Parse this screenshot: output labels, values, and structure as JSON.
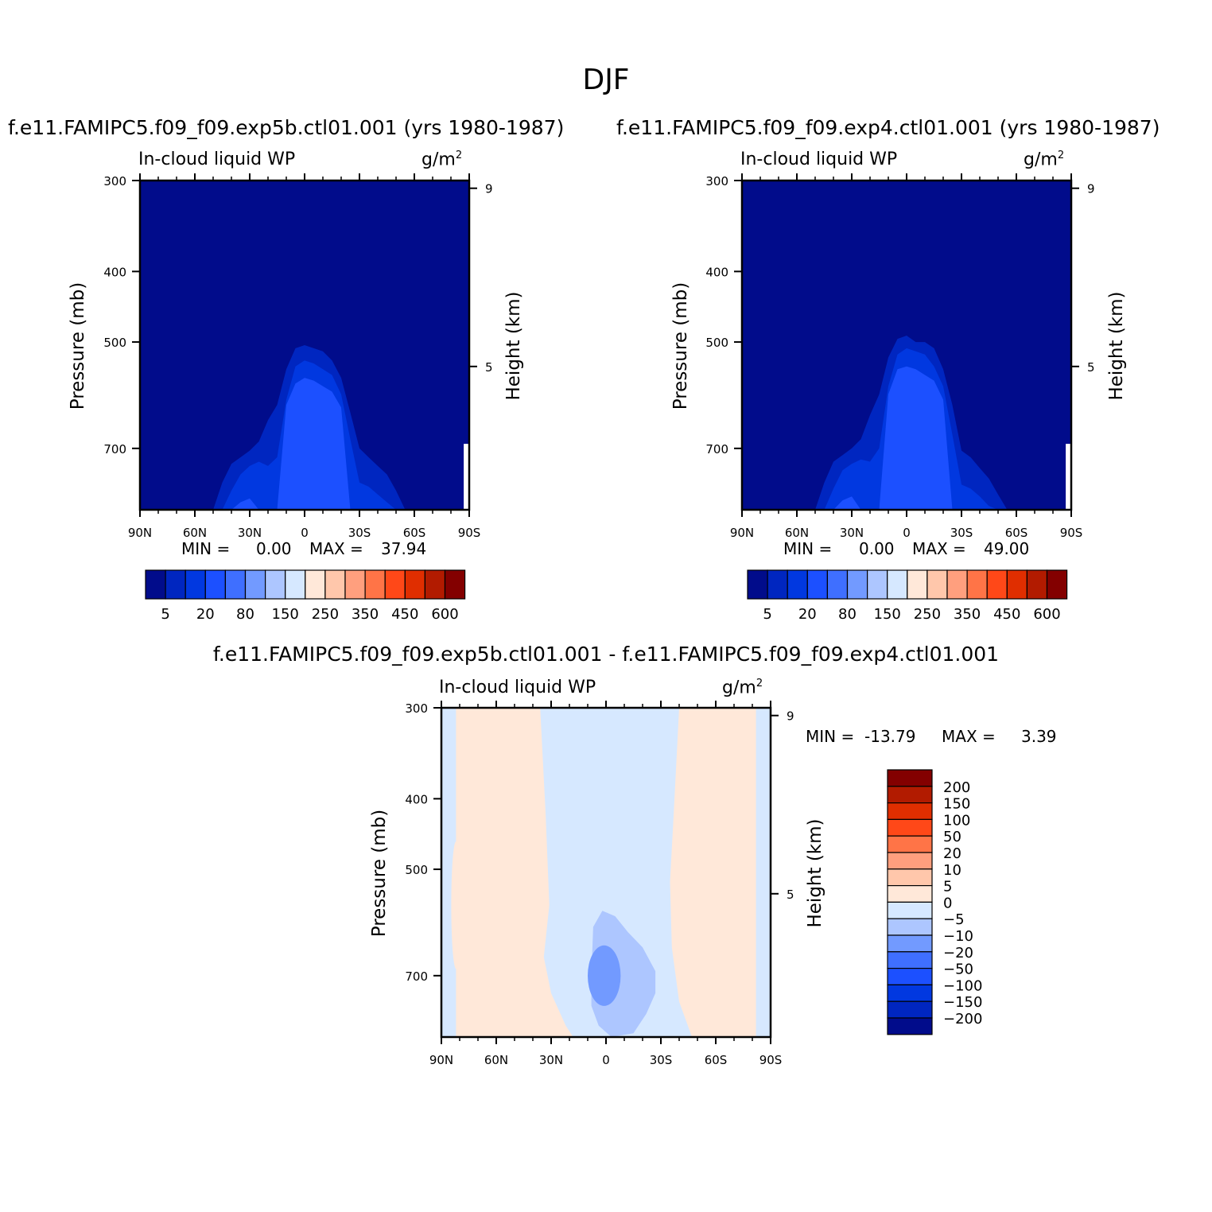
{
  "page_title": "DJF",
  "panels": [
    {
      "run_title": "f.e11.FAMIPC5.f09_f09.exp5b.ctl01.001 (yrs 1980-1987)",
      "variable": "In-cloud liquid WP",
      "units": "g/m",
      "units_exp": "2",
      "y_label": "Pressure (mb)",
      "y2_label": "Height (km)",
      "min_label": "MIN =",
      "min_value": "0.00",
      "max_label": "MAX =",
      "max_value": "37.94"
    },
    {
      "run_title": "f.e11.FAMIPC5.f09_f09.exp4.ctl01.001 (yrs 1980-1987)",
      "variable": "In-cloud liquid WP",
      "units": "g/m",
      "units_exp": "2",
      "y_label": "Pressure (mb)",
      "y2_label": "Height (km)",
      "min_label": "MIN =",
      "min_value": "0.00",
      "max_label": "MAX =",
      "max_value": "49.00"
    },
    {
      "run_title": "f.e11.FAMIPC5.f09_f09.exp5b.ctl01.001 - f.e11.FAMIPC5.f09_f09.exp4.ctl01.001",
      "variable": "In-cloud liquid WP",
      "units": "g/m",
      "units_exp": "2",
      "y_label": "Pressure (mb)",
      "y2_label": "Height (km)",
      "min_label": "MIN =",
      "min_value": "-13.79",
      "max_label": "MAX =",
      "max_value": "3.39"
    }
  ],
  "chart_data": [
    {
      "type": "heatmap",
      "title": "f.e11.FAMIPC5.f09_f09.exp5b.ctl01.001 (yrs 1980-1987)",
      "subtitle": "In-cloud liquid WP",
      "units": "g/m2",
      "x_ticks": [
        90,
        60,
        30,
        0,
        -30,
        -60,
        -90
      ],
      "x_tick_labels": [
        "90N",
        "60N",
        "30N",
        "0",
        "30S",
        "60S",
        "90S"
      ],
      "y_ticks": [
        300,
        400,
        500,
        700
      ],
      "y_tick_labels": [
        "300",
        "400",
        "500",
        "700"
      ],
      "y2_ticks": [
        9,
        5
      ],
      "y2_tick_labels": [
        "9",
        "5"
      ],
      "xlim": [
        90,
        -90
      ],
      "ylim": [
        300,
        850
      ],
      "min": 0.0,
      "max": 37.94,
      "colorbar_orientation": "horizontal",
      "colorbar_labels": [
        "5",
        "20",
        "80",
        "150",
        "250",
        "350",
        "450",
        "600"
      ],
      "colorbar_colors": [
        "#010c8b",
        "#0026c0",
        "#0138e0",
        "#1c50ff",
        "#3f6fff",
        "#729aff",
        "#adc6ff",
        "#d6e8ff",
        "#ffe8d9",
        "#ffc7ab",
        "#ff9f7e",
        "#ff7447",
        "#ff4818",
        "#e02e00",
        "#b21b00",
        "#830000"
      ],
      "contour_levels": [
        5,
        10,
        20
      ],
      "contour_colors": [
        "#0026c0",
        "#0138e0",
        "#1c50ff"
      ],
      "field": {
        "lat": [
          90,
          80,
          70,
          60,
          50,
          45,
          40,
          35,
          30,
          25,
          20,
          15,
          10,
          5,
          0,
          -5,
          -10,
          -15,
          -20,
          -25,
          -30,
          -35,
          -40,
          -45,
          -50,
          -55,
          -60,
          -70,
          -80,
          -90
        ],
        "lev": [
          300,
          350,
          400,
          450,
          500,
          550,
          600,
          650,
          700,
          750,
          800,
          850
        ],
        "levels_at": "contour boundary pressure (mb) per latitude: level5, level10, level20",
        "top5": [
          850,
          850,
          850,
          850,
          850,
          780,
          735,
          720,
          705,
          685,
          640,
          610,
          545,
          510,
          505,
          510,
          515,
          530,
          560,
          625,
          700,
          720,
          740,
          760,
          800,
          850,
          850,
          850,
          850,
          850
        ],
        "top10": [
          850,
          850,
          850,
          850,
          850,
          850,
          800,
          760,
          740,
          730,
          740,
          720,
          600,
          540,
          530,
          535,
          545,
          555,
          590,
          680,
          780,
          790,
          810,
          830,
          850,
          850,
          850,
          850,
          850,
          850
        ],
        "top20": [
          850,
          850,
          850,
          850,
          850,
          850,
          850,
          830,
          820,
          850,
          850,
          850,
          610,
          570,
          560,
          565,
          575,
          585,
          615,
          850,
          850,
          850,
          850,
          850,
          850,
          850,
          850,
          850,
          850,
          850
        ]
      }
    },
    {
      "type": "heatmap",
      "title": "f.e11.FAMIPC5.f09_f09.exp4.ctl01.001 (yrs 1980-1987)",
      "subtitle": "In-cloud liquid WP",
      "units": "g/m2",
      "x_ticks": [
        90,
        60,
        30,
        0,
        -30,
        -60,
        -90
      ],
      "x_tick_labels": [
        "90N",
        "60N",
        "30N",
        "0",
        "30S",
        "60S",
        "90S"
      ],
      "y_ticks": [
        300,
        400,
        500,
        700
      ],
      "y_tick_labels": [
        "300",
        "400",
        "500",
        "700"
      ],
      "y2_ticks": [
        9,
        5
      ],
      "y2_tick_labels": [
        "9",
        "5"
      ],
      "xlim": [
        90,
        -90
      ],
      "ylim": [
        300,
        850
      ],
      "min": 0.0,
      "max": 49.0,
      "colorbar_orientation": "horizontal",
      "colorbar_labels": [
        "5",
        "20",
        "80",
        "150",
        "250",
        "350",
        "450",
        "600"
      ],
      "colorbar_colors": [
        "#010c8b",
        "#0026c0",
        "#0138e0",
        "#1c50ff",
        "#3f6fff",
        "#729aff",
        "#adc6ff",
        "#d6e8ff",
        "#ffe8d9",
        "#ffc7ab",
        "#ff9f7e",
        "#ff7447",
        "#ff4818",
        "#e02e00",
        "#b21b00",
        "#830000"
      ],
      "contour_levels": [
        5,
        10,
        20
      ],
      "contour_colors": [
        "#0026c0",
        "#0138e0",
        "#1c50ff"
      ],
      "field": {
        "lat": [
          90,
          80,
          70,
          60,
          50,
          45,
          40,
          35,
          30,
          25,
          20,
          15,
          10,
          5,
          0,
          -5,
          -10,
          -15,
          -20,
          -25,
          -30,
          -35,
          -40,
          -45,
          -50,
          -55,
          -60,
          -70,
          -80,
          -90
        ],
        "lev": [
          300,
          350,
          400,
          450,
          500,
          550,
          600,
          650,
          700,
          750,
          800,
          850
        ],
        "levels_at": "contour boundary pressure (mb) per latitude: level5, level10, level20",
        "top5": [
          850,
          850,
          850,
          850,
          850,
          780,
          730,
          715,
          700,
          680,
          630,
          590,
          525,
          495,
          490,
          500,
          500,
          510,
          545,
          610,
          705,
          720,
          745,
          770,
          810,
          850,
          850,
          850,
          850,
          850
        ],
        "top10": [
          850,
          850,
          850,
          850,
          850,
          850,
          795,
          750,
          735,
          725,
          730,
          700,
          575,
          520,
          510,
          515,
          520,
          540,
          575,
          670,
          785,
          795,
          815,
          840,
          850,
          850,
          850,
          850,
          850,
          850
        ],
        "top20": [
          850,
          850,
          850,
          850,
          850,
          850,
          850,
          825,
          815,
          850,
          850,
          850,
          590,
          545,
          540,
          545,
          555,
          565,
          600,
          850,
          850,
          850,
          850,
          850,
          850,
          850,
          850,
          850,
          850,
          850
        ]
      }
    },
    {
      "type": "heatmap",
      "title": "f.e11.FAMIPC5.f09_f09.exp5b.ctl01.001 - f.e11.FAMIPC5.f09_f09.exp4.ctl01.001",
      "subtitle": "In-cloud liquid WP",
      "units": "g/m2",
      "x_ticks": [
        90,
        60,
        30,
        0,
        -30,
        -60,
        -90
      ],
      "x_tick_labels": [
        "90N",
        "60N",
        "30N",
        "0",
        "30S",
        "60S",
        "90S"
      ],
      "y_ticks": [
        300,
        400,
        500,
        700
      ],
      "y_tick_labels": [
        "300",
        "400",
        "500",
        "700"
      ],
      "y2_ticks": [
        9,
        5
      ],
      "y2_tick_labels": [
        "9",
        "5"
      ],
      "xlim": [
        90,
        -90
      ],
      "ylim": [
        300,
        850
      ],
      "min": -13.79,
      "max": 3.39,
      "colorbar_orientation": "vertical",
      "colorbar_labels": [
        "200",
        "150",
        "100",
        "50",
        "20",
        "10",
        "5",
        "0",
        "-5",
        "-10",
        "-20",
        "-50",
        "-100",
        "-150",
        "-200"
      ],
      "colorbar_colors": [
        "#830000",
        "#b21b00",
        "#e02e00",
        "#ff4818",
        "#ff7447",
        "#ff9f7e",
        "#ffc7ab",
        "#ffe8d9",
        "#d6e8ff",
        "#adc6ff",
        "#729aff",
        "#3f6fff",
        "#1c50ff",
        "#0138e0",
        "#0026c0",
        "#010c8b"
      ],
      "field": {
        "lat": [
          90,
          85,
          80,
          60,
          40,
          30,
          25,
          20,
          15,
          10,
          5,
          0,
          -5,
          -10,
          -15,
          -20,
          -25,
          -30,
          -35,
          -40,
          -60,
          -70,
          -80,
          -85,
          -90
        ],
        "lev": [
          300,
          350,
          400,
          450,
          500,
          550,
          600,
          650,
          700,
          750,
          800,
          850
        ],
        "description": "mostly 0..5 (light orange) at mid/high latitudes; 0..-5 (light blue) in tropics 35N-40S with -5..-10 core 10N-30S below 580 mb and -10..-20 center near 5S 650-770 mb",
        "neg5_region_lat_range": [
          25,
          -35
        ],
        "neg10_region": {
          "lat": [
            10,
            -28
          ],
          "lev": [
            575,
            850
          ]
        },
        "neg20_region": {
          "lat": [
            6,
            -5
          ],
          "lev": [
            640,
            770
          ]
        }
      }
    }
  ]
}
